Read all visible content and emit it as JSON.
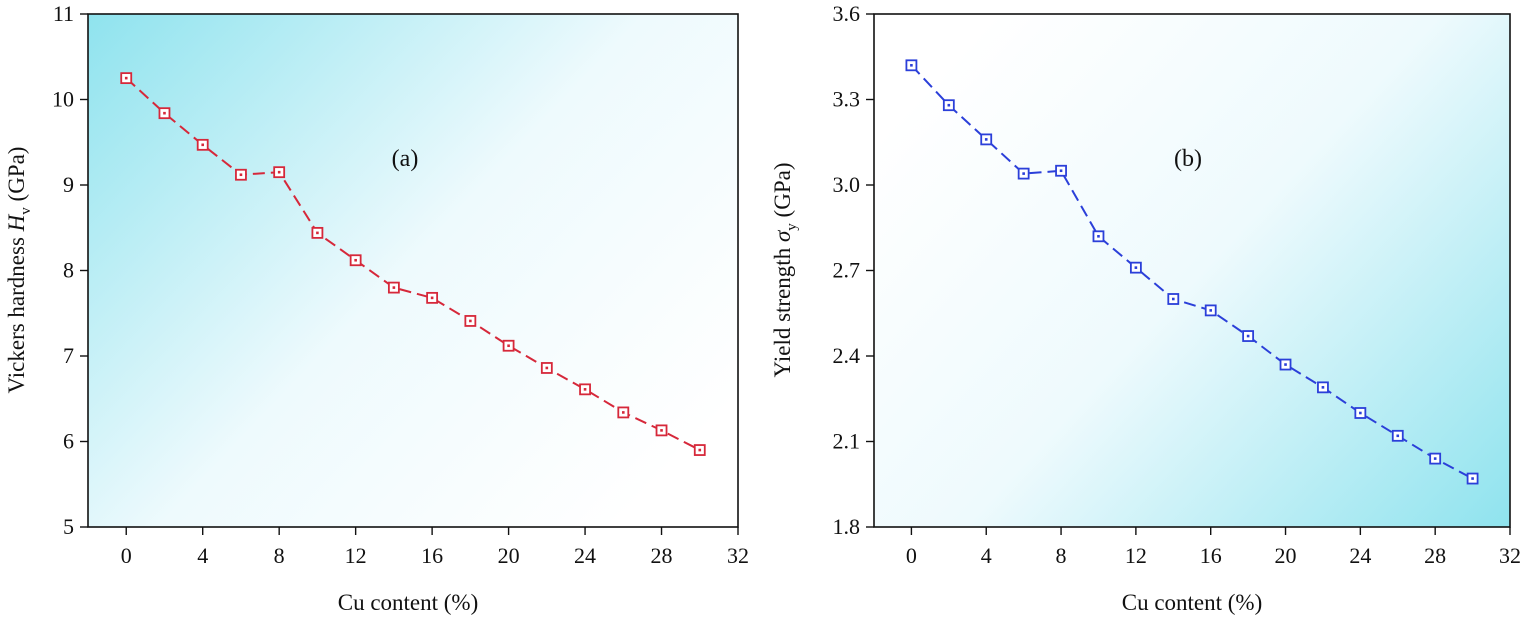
{
  "chart_data": [
    {
      "type": "line",
      "panel_label": "(a)",
      "xlabel": "Cu content (%)",
      "ylabel_main": "Vickers hardness ",
      "ylabel_var": "H",
      "ylabel_sub": "v",
      "ylabel_unit": " (GPa)",
      "xlim": [
        -2,
        32
      ],
      "ylim": [
        5,
        11
      ],
      "xticks": [
        "0",
        "4",
        "8",
        "12",
        "16",
        "20",
        "24",
        "28",
        "32"
      ],
      "yticks": [
        "5",
        "6",
        "7",
        "8",
        "9",
        "10",
        "11"
      ],
      "grid": false,
      "background_gradient": "cyan fading toward bottom-right",
      "series": [
        {
          "color": "#d6283a",
          "marker": "square",
          "line_style": "dashed",
          "x": [
            0,
            2,
            4,
            6,
            8,
            10,
            12,
            14,
            16,
            18,
            20,
            22,
            24,
            26,
            28,
            30
          ],
          "y": [
            10.25,
            9.84,
            9.47,
            9.12,
            9.15,
            8.44,
            8.12,
            7.8,
            7.68,
            7.41,
            7.12,
            6.86,
            6.61,
            6.34,
            6.13,
            5.9
          ]
        }
      ]
    },
    {
      "type": "line",
      "panel_label": "(b)",
      "xlabel": "Cu content (%)",
      "ylabel_main": "Yield strength ",
      "ylabel_var": "σ",
      "ylabel_sub": "y",
      "ylabel_unit": " (GPa)",
      "xlim": [
        -2,
        32
      ],
      "ylim": [
        1.8,
        3.6
      ],
      "xticks": [
        "0",
        "4",
        "8",
        "12",
        "16",
        "20",
        "24",
        "28",
        "32"
      ],
      "yticks": [
        "1.8",
        "2.1",
        "2.4",
        "2.7",
        "3.0",
        "3.3",
        "3.6"
      ],
      "grid": false,
      "background_gradient": "cyan fading toward top-left",
      "series": [
        {
          "color": "#2b3fd9",
          "marker": "square",
          "line_style": "dashed",
          "x": [
            0,
            2,
            4,
            6,
            8,
            10,
            12,
            14,
            16,
            18,
            20,
            22,
            24,
            26,
            28,
            30
          ],
          "y": [
            3.42,
            3.28,
            3.16,
            3.04,
            3.05,
            2.82,
            2.71,
            2.6,
            2.56,
            2.47,
            2.37,
            2.29,
            2.2,
            2.12,
            2.04,
            1.97
          ]
        }
      ]
    }
  ]
}
